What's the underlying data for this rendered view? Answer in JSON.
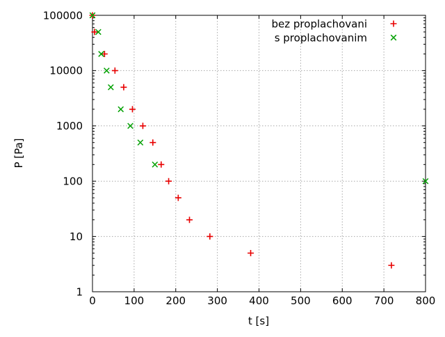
{
  "chart_data": {
    "type": "scatter",
    "title": "",
    "xlabel": "t [s]",
    "ylabel": "P [Pa]",
    "x_axis": {
      "min": 0,
      "max": 800,
      "ticks": [
        0,
        100,
        200,
        300,
        400,
        500,
        600,
        700,
        800
      ],
      "tick_labels": [
        "0",
        "100",
        "200",
        "300",
        "400",
        "500",
        "600",
        "700",
        "800"
      ],
      "scale": "linear"
    },
    "y_axis": {
      "min": 1,
      "max": 100000,
      "ticks": [
        1,
        10,
        100,
        1000,
        10000,
        100000
      ],
      "tick_labels": [
        "1",
        "10",
        "100",
        "1000",
        "10000",
        "100000"
      ],
      "scale": "log"
    },
    "grid": true,
    "grid_style": "dotted",
    "legend_position": "top-right-inside",
    "colors": {
      "series1": "#e80000",
      "series2": "#00a000",
      "grid": "#a8a8a8",
      "axis": "#000000",
      "background": "#ffffff"
    },
    "series": [
      {
        "name": "bez proplachovani",
        "marker": "plus",
        "color": "#e80000",
        "points": [
          [
            0,
            100000
          ],
          [
            5,
            50000
          ],
          [
            29,
            20000
          ],
          [
            54,
            10000
          ],
          [
            75,
            5000
          ],
          [
            96,
            2000
          ],
          [
            121,
            1000
          ],
          [
            145,
            500
          ],
          [
            165,
            200
          ],
          [
            183,
            100
          ],
          [
            206,
            50
          ],
          [
            233,
            20
          ],
          [
            282,
            10
          ],
          [
            380,
            5
          ],
          [
            718,
            3
          ]
        ]
      },
      {
        "name": "s proplachovanim",
        "marker": "cross",
        "color": "#00a000",
        "points": [
          [
            0,
            100000
          ],
          [
            14,
            50000
          ],
          [
            21,
            20000
          ],
          [
            34,
            10000
          ],
          [
            44,
            5000
          ],
          [
            68,
            2000
          ],
          [
            91,
            1000
          ],
          [
            115,
            500
          ],
          [
            150,
            200
          ],
          [
            800,
            100
          ]
        ]
      }
    ]
  }
}
